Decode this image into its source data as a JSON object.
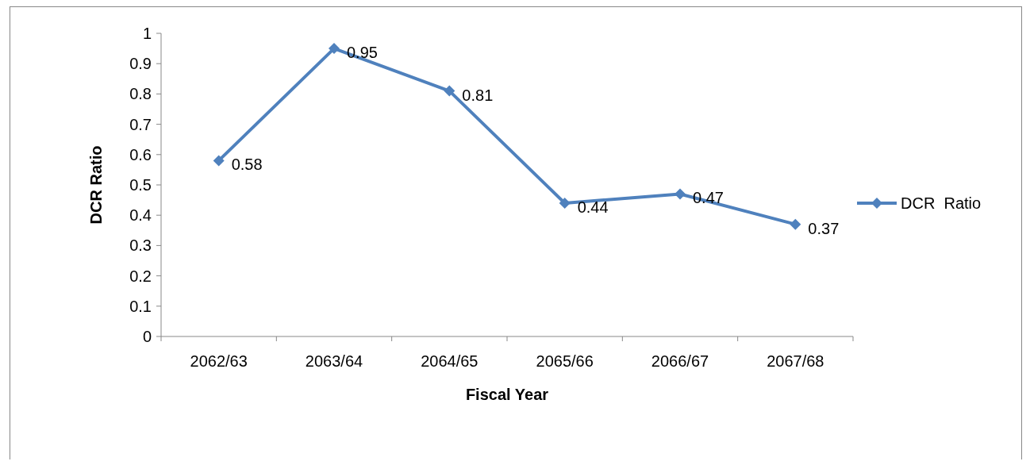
{
  "chart_data": {
    "type": "line",
    "xlabel": "Fiscal Year",
    "ylabel": "DCR Ratio",
    "categories": [
      "2062/63",
      "2063/64",
      "2064/65",
      "2065/66",
      "2066/67",
      "2067/68"
    ],
    "series": [
      {
        "name": "DCR  Ratio",
        "color": "#4f81bd",
        "values": [
          0.58,
          0.95,
          0.81,
          0.44,
          0.47,
          0.37
        ]
      }
    ],
    "ylim": [
      0,
      1
    ],
    "yticks": [
      0,
      0.1,
      0.2,
      0.3,
      0.4,
      0.5,
      0.6,
      0.7,
      0.8,
      0.9,
      1
    ],
    "data_labels": true,
    "legend": "right",
    "marker": "diamond",
    "line_style": "solid",
    "grid": false
  }
}
